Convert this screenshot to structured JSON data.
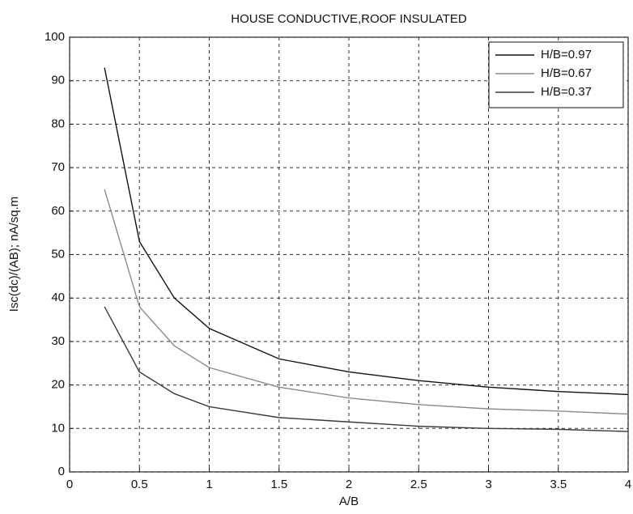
{
  "chart_data": {
    "type": "line",
    "title": "HOUSE CONDUCTIVE,ROOF INSULATED",
    "x_label": "A/B",
    "y_label": "Isc(dc)/(AB); nA/sq.m",
    "x": [
      0.25,
      0.5,
      0.75,
      1,
      1.5,
      2,
      2.5,
      3,
      3.5,
      4
    ],
    "series": [
      {
        "name": "H/B=0.97",
        "color": "#111111",
        "values": [
          93,
          53,
          40,
          33,
          26,
          23,
          21,
          19.5,
          18.5,
          17.8
        ]
      },
      {
        "name": "H/B=0.67",
        "color": "#8a8a8a",
        "values": [
          65,
          38,
          29,
          24,
          19.5,
          17,
          15.5,
          14.5,
          14,
          13.3
        ]
      },
      {
        "name": "H/B=0.37",
        "color": "#3a3a3a",
        "values": [
          38,
          23,
          18,
          15,
          12.5,
          11.5,
          10.5,
          10,
          9.8,
          9.3
        ]
      }
    ],
    "xlim": [
      0,
      4
    ],
    "xticks": [
      0,
      0.5,
      1,
      1.5,
      2,
      2.5,
      3,
      3.5,
      4
    ],
    "ylim": [
      0,
      100
    ],
    "yticks": [
      0,
      10,
      20,
      30,
      40,
      50,
      60,
      70,
      80,
      90,
      100
    ],
    "grid": true,
    "legend": "top-right"
  }
}
